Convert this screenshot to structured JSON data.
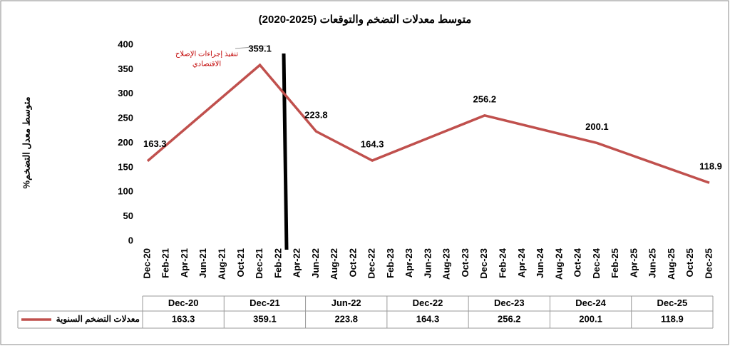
{
  "chart_data": {
    "type": "line",
    "title": "متوسط معدلات التضخم والتوقعات (2025-2020)",
    "y_label": "متوسط معدل التضخم%",
    "annotation": [
      "تنفيذ إجراءات الإصلاح",
      "الاقتصادي"
    ],
    "categories": [
      "Dec-20",
      "Feb-21",
      "Apr-21",
      "Jun-21",
      "Aug-21",
      "Oct-21",
      "Dec-21",
      "Feb-22",
      "Apr-22",
      "Jun-22",
      "Aug-22",
      "Oct-22",
      "Dec-22",
      "Feb-23",
      "Apr-23",
      "Jun-23",
      "Aug-23",
      "Oct-23",
      "Dec-23",
      "Feb-24",
      "Apr-24",
      "Jun-24",
      "Aug-24",
      "Oct-24",
      "Dec-24",
      "Feb-25",
      "Apr-25",
      "Jun-25",
      "Aug-25",
      "Oct-25",
      "Dec-25"
    ],
    "series": [
      {
        "name": "معدلات التضخم السنوية",
        "color": "#c0504d",
        "x": [
          "Dec-20",
          "Dec-21",
          "Jun-22",
          "Dec-22",
          "Dec-23",
          "Dec-24",
          "Dec-25"
        ],
        "values": [
          163.3,
          359.1,
          223.8,
          164.3,
          256.2,
          200.1,
          118.9
        ]
      }
    ],
    "ylim": [
      0,
      400
    ],
    "yticks": [
      0,
      50,
      100,
      150,
      200,
      250,
      300,
      350,
      400
    ],
    "grid": false
  }
}
